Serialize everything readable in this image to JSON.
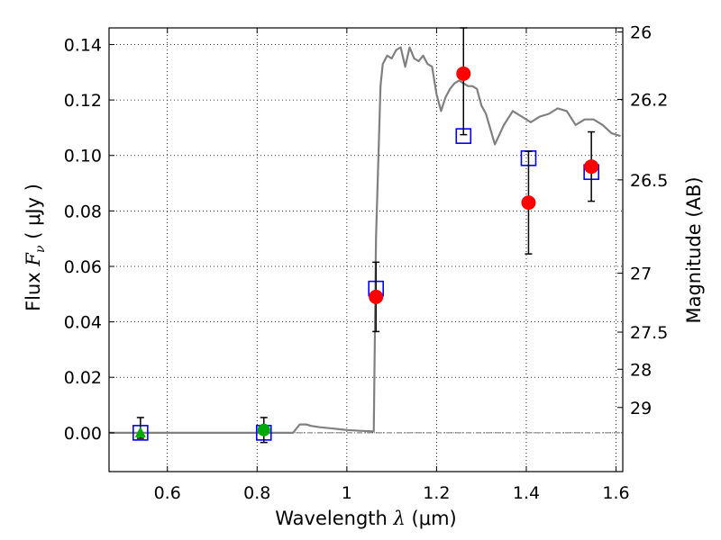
{
  "chart_data": {
    "type": "scatter",
    "xlabel": {
      "prefix": "Wavelength",
      "symbol": "λ",
      "unit": "(μm)"
    },
    "ylabel": {
      "prefix": "Flux",
      "symbol": "F",
      "subscript": "ν",
      "unit": "( μJy )"
    },
    "y2label": "Magnitude (AB)",
    "xlim": [
      0.47,
      1.615
    ],
    "ylim": [
      -0.014,
      0.146
    ],
    "grid": true,
    "xticks": [
      {
        "v": 0.6,
        "label": "0.6"
      },
      {
        "v": 0.8,
        "label": "0.8"
      },
      {
        "v": 1.0,
        "label": "1"
      },
      {
        "v": 1.2,
        "label": "1.2"
      },
      {
        "v": 1.4,
        "label": "1.4"
      },
      {
        "v": 1.6,
        "label": "1.6"
      }
    ],
    "yticks": [
      {
        "v": 0.0,
        "label": "0.00"
      },
      {
        "v": 0.02,
        "label": "0.02"
      },
      {
        "v": 0.04,
        "label": "0.04"
      },
      {
        "v": 0.06,
        "label": "0.06"
      },
      {
        "v": 0.08,
        "label": "0.08"
      },
      {
        "v": 0.1,
        "label": "0.10"
      },
      {
        "v": 0.12,
        "label": "0.12"
      },
      {
        "v": 0.14,
        "label": "0.14"
      }
    ],
    "mag_ticks": [
      {
        "mag": 26,
        "label": "26"
      },
      {
        "mag": 26.2,
        "label": "26.2"
      },
      {
        "mag": 26.5,
        "label": "26.5"
      },
      {
        "mag": 27,
        "label": "27"
      },
      {
        "mag": 27.5,
        "label": "27.5"
      },
      {
        "mag": 28,
        "label": "28"
      },
      {
        "mag": 29,
        "label": "29"
      }
    ],
    "baseline_y": 0.0,
    "model_sed": {
      "color": "#808080",
      "x": [
        0.47,
        0.88,
        0.885,
        0.895,
        0.91,
        0.92,
        0.94,
        0.97,
        1.0,
        1.03,
        1.06,
        1.065,
        1.075,
        1.08,
        1.09,
        1.1,
        1.11,
        1.12,
        1.13,
        1.14,
        1.15,
        1.16,
        1.17,
        1.18,
        1.19,
        1.2,
        1.21,
        1.22,
        1.23,
        1.24,
        1.25,
        1.26,
        1.27,
        1.28,
        1.29,
        1.3,
        1.31,
        1.33,
        1.35,
        1.37,
        1.39,
        1.41,
        1.43,
        1.45,
        1.47,
        1.49,
        1.51,
        1.53,
        1.55,
        1.57,
        1.59,
        1.61
      ],
      "y": [
        0.0,
        0.0,
        0.001,
        0.003,
        0.003,
        0.0025,
        0.002,
        0.0015,
        0.001,
        0.0007,
        0.0005,
        0.07,
        0.125,
        0.133,
        0.136,
        0.135,
        0.138,
        0.139,
        0.132,
        0.139,
        0.135,
        0.134,
        0.136,
        0.133,
        0.132,
        0.122,
        0.116,
        0.121,
        0.124,
        0.126,
        0.127,
        0.126,
        0.125,
        0.125,
        0.124,
        0.118,
        0.115,
        0.104,
        0.111,
        0.116,
        0.114,
        0.112,
        0.114,
        0.115,
        0.117,
        0.116,
        0.111,
        0.113,
        0.113,
        0.111,
        0.108,
        0.107
      ]
    },
    "model_photometry": {
      "marker": "open-square",
      "color": "#0000ff",
      "points": [
        {
          "x": 0.54,
          "y": 0.0
        },
        {
          "x": 0.815,
          "y": 0.0
        },
        {
          "x": 1.065,
          "y": 0.052
        },
        {
          "x": 1.26,
          "y": 0.107
        },
        {
          "x": 1.405,
          "y": 0.099
        },
        {
          "x": 1.545,
          "y": 0.094
        }
      ]
    },
    "observed_detections": {
      "marker": "filled-circle",
      "color": "#ff0000",
      "points": [
        {
          "x": 1.065,
          "y": 0.049,
          "ylo": 0.0365,
          "yhi": 0.0615
        },
        {
          "x": 1.26,
          "y": 0.1295,
          "ylo": 0.1075,
          "yhi": 0.146
        },
        {
          "x": 1.405,
          "y": 0.083,
          "ylo": 0.0645,
          "yhi": 0.1015
        },
        {
          "x": 1.545,
          "y": 0.096,
          "ylo": 0.0835,
          "yhi": 0.1085
        }
      ]
    },
    "optical_triangle": {
      "marker": "filled-triangle",
      "color": "#00aa00",
      "points": [
        {
          "x": 0.54,
          "y": 0.0,
          "ylo": -0.002,
          "yhi": 0.0055
        }
      ]
    },
    "optical_circle": {
      "marker": "filled-circle",
      "color": "#00aa00",
      "points": [
        {
          "x": 0.815,
          "y": 0.001,
          "ylo": -0.0035,
          "yhi": 0.0055
        }
      ]
    }
  }
}
